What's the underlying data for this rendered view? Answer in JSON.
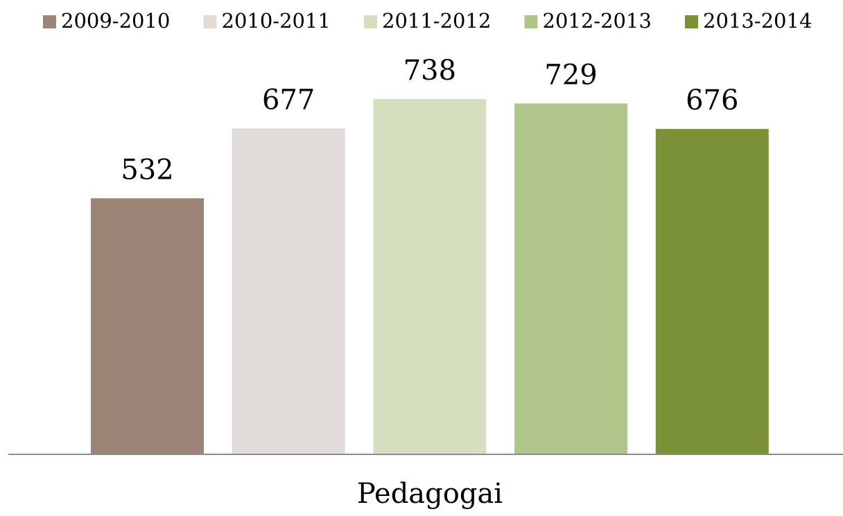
{
  "chart_data": {
    "type": "bar",
    "categories": [
      "Pedagogai"
    ],
    "series": [
      {
        "name": "2009-2010",
        "color": "#9c8577",
        "values": [
          532
        ]
      },
      {
        "name": "2010-2011",
        "color": "#e0dbd7",
        "values": [
          677
        ]
      },
      {
        "name": "2011-2012",
        "color": "#d4dfc0",
        "values": [
          738
        ]
      },
      {
        "name": "2012-2013",
        "color": "#b1c48a",
        "values": [
          729
        ]
      },
      {
        "name": "2013-2014",
        "color": "#7a9138",
        "values": [
          676
        ]
      }
    ],
    "ylim": [
      0,
      800
    ],
    "legend": "top"
  }
}
